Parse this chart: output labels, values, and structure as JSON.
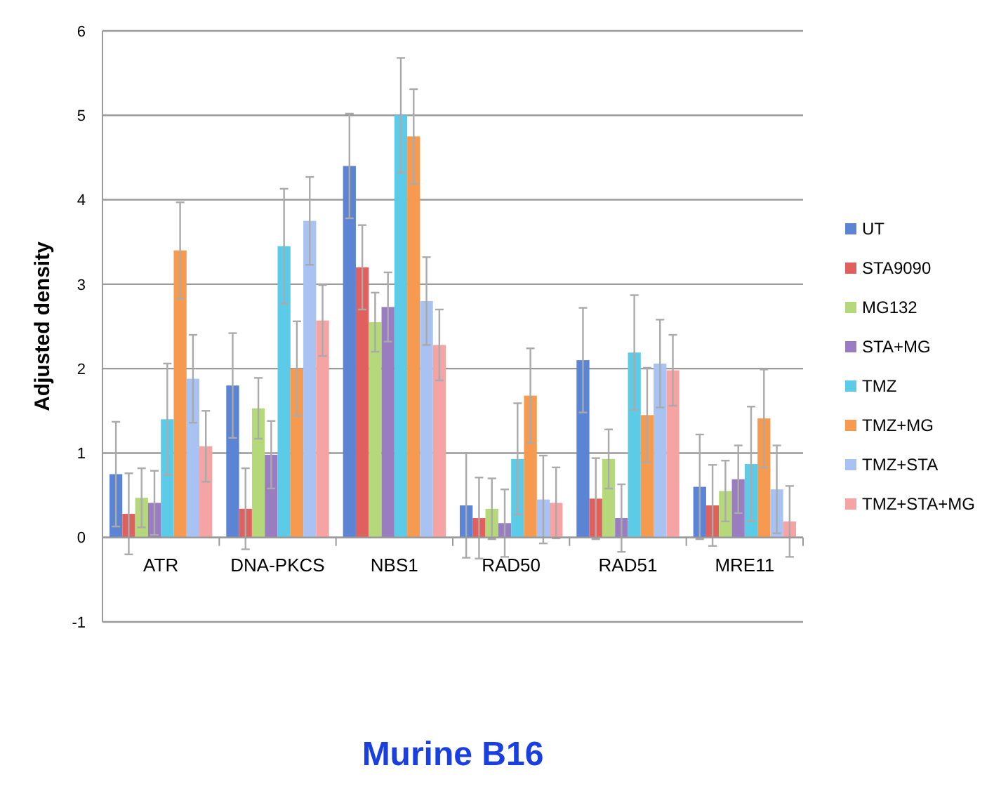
{
  "chart_data": {
    "type": "bar",
    "title": "Murine B16",
    "ylabel": "Adjusted density",
    "categories": [
      "ATR",
      "DNA-PKCS",
      "NBS1",
      "RAD50",
      "RAD51",
      "MRE11"
    ],
    "series": [
      {
        "name": "UT",
        "color": "#5b84d4",
        "values": [
          0.75,
          1.8,
          4.4,
          0.38,
          2.1,
          0.6
        ],
        "errors": [
          0.62,
          0.62,
          0.62,
          0.62,
          0.62,
          0.62
        ]
      },
      {
        "name": "STA9090",
        "color": "#e0605e",
        "values": [
          0.28,
          0.34,
          3.2,
          0.23,
          0.46,
          0.38
        ],
        "errors": [
          0.48,
          0.48,
          0.5,
          0.48,
          0.48,
          0.48
        ]
      },
      {
        "name": "MG132",
        "color": "#b5d97a",
        "values": [
          0.47,
          1.53,
          2.55,
          0.34,
          0.93,
          0.55
        ],
        "errors": [
          0.35,
          0.36,
          0.35,
          0.36,
          0.35,
          0.36
        ]
      },
      {
        "name": "STA+MG",
        "color": "#9a7cc0",
        "values": [
          0.41,
          0.98,
          2.73,
          0.17,
          0.23,
          0.69
        ],
        "errors": [
          0.38,
          0.4,
          0.41,
          0.4,
          0.4,
          0.4
        ]
      },
      {
        "name": "TMZ",
        "color": "#5ccbe8",
        "values": [
          1.4,
          3.45,
          5.0,
          0.93,
          2.19,
          0.87
        ],
        "errors": [
          0.66,
          0.68,
          0.68,
          0.66,
          0.68,
          0.68
        ]
      },
      {
        "name": "TMZ+MG",
        "color": "#f59a4f",
        "values": [
          3.4,
          2.0,
          4.75,
          1.68,
          1.45,
          1.41
        ],
        "errors": [
          0.57,
          0.56,
          0.56,
          0.56,
          0.56,
          0.58
        ]
      },
      {
        "name": "TMZ+STA",
        "color": "#a8c2f2",
        "values": [
          1.88,
          3.75,
          2.8,
          0.45,
          2.06,
          0.57
        ],
        "errors": [
          0.52,
          0.52,
          0.52,
          0.52,
          0.52,
          0.52
        ]
      },
      {
        "name": "TMZ+STA+MG",
        "color": "#f5a3a3",
        "values": [
          1.08,
          2.57,
          2.28,
          0.41,
          1.98,
          0.19
        ],
        "errors": [
          0.42,
          0.42,
          0.42,
          0.42,
          0.42,
          0.42
        ]
      }
    ],
    "ylim": [
      -1,
      6
    ],
    "yticks": [
      -1,
      0,
      1,
      2,
      3,
      4,
      5,
      6
    ],
    "grid": "y",
    "legend": "right"
  }
}
